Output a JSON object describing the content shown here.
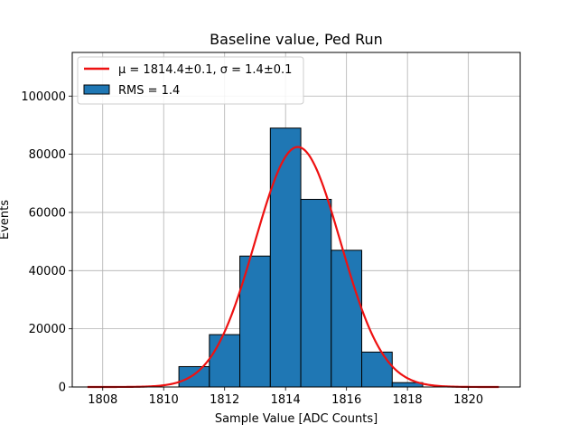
{
  "chart_data": {
    "type": "bar",
    "title": "Baseline value, Ped Run",
    "xlabel": "Sample Value [ADC Counts]",
    "ylabel": "Events",
    "xlim": [
      1807.0,
      1821.7
    ],
    "ylim": [
      0,
      115000
    ],
    "x_ticks": [
      1808,
      1810,
      1812,
      1814,
      1816,
      1818,
      1820
    ],
    "y_ticks": [
      0,
      20000,
      40000,
      60000,
      80000,
      100000
    ],
    "grid": true,
    "legend_position": "upper left",
    "histogram": {
      "name": "RMS = 1.4",
      "color": "#1f77b4",
      "edge_color": "#000000",
      "bins": [
        {
          "x0": 1810.5,
          "x1": 1811.5,
          "value": 7000
        },
        {
          "x0": 1811.5,
          "x1": 1812.5,
          "value": 18000
        },
        {
          "x0": 1812.5,
          "x1": 1813.5,
          "value": 45000
        },
        {
          "x0": 1813.5,
          "x1": 1814.5,
          "value": 89000
        },
        {
          "x0": 1814.5,
          "x1": 1815.5,
          "value": 64500
        },
        {
          "x0": 1815.5,
          "x1": 1816.5,
          "value": 47000
        },
        {
          "x0": 1816.5,
          "x1": 1817.5,
          "value": 12000
        },
        {
          "x0": 1817.5,
          "x1": 1818.5,
          "value": 1500
        }
      ]
    },
    "fit": {
      "name": "μ = 1814.4±0.1, σ = 1.4±0.1",
      "color": "#ee1111",
      "amplitude": 82500,
      "mu": 1814.4,
      "sigma": 1.4,
      "x_range": [
        1807.5,
        1821.0
      ]
    }
  }
}
